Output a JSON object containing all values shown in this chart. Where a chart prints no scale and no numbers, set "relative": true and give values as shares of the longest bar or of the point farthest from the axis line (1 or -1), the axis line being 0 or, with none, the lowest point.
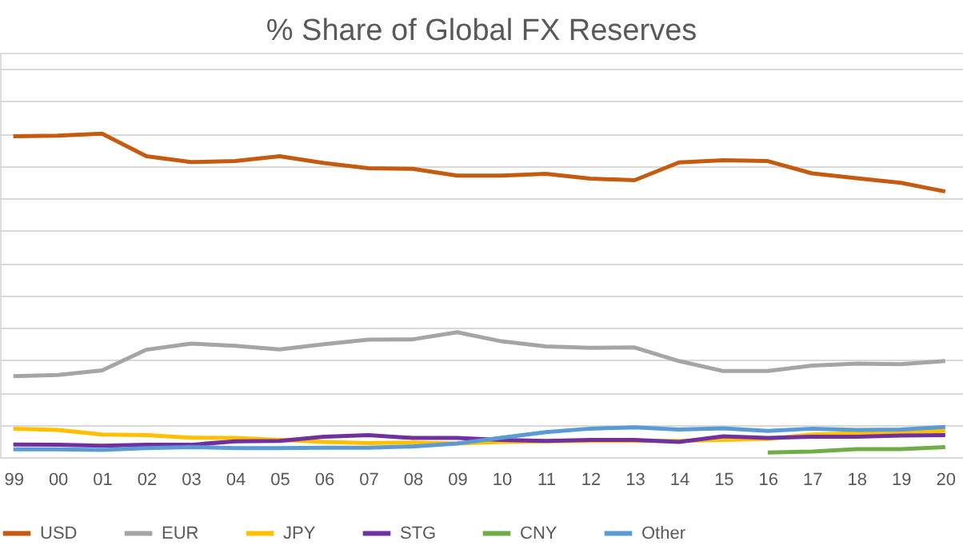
{
  "chart_data": {
    "type": "line",
    "title": "% Share of Global FX Reserves",
    "relative": true,
    "grid": "y",
    "legend": "bottom",
    "line_style": "solid",
    "marker": "none",
    "categories": [
      "99",
      "00",
      "01",
      "02",
      "03",
      "04",
      "05",
      "06",
      "07",
      "08",
      "09",
      "10",
      "11",
      "12",
      "13",
      "14",
      "15",
      "16",
      "17",
      "18",
      "19",
      "20"
    ],
    "series": [
      {
        "name": "USD",
        "color": "#c55a11",
        "values": [
          0.992,
          0.994,
          1,
          0.93,
          0.912,
          0.915,
          0.93,
          0.909,
          0.893,
          0.891,
          0.87,
          0.87,
          0.876,
          0.861,
          0.856,
          0.911,
          0.918,
          0.915,
          0.877,
          0.862,
          0.848,
          0.821
        ]
      },
      {
        "name": "EUR",
        "color": "#a5a5a5",
        "values": [
          0.25,
          0.254,
          0.268,
          0.332,
          0.351,
          0.344,
          0.333,
          0.349,
          0.363,
          0.364,
          0.386,
          0.358,
          0.342,
          0.338,
          0.339,
          0.297,
          0.266,
          0.266,
          0.283,
          0.289,
          0.287,
          0.297
        ]
      },
      {
        "name": "JPY",
        "color": "#ffc000",
        "values": [
          0.088,
          0.084,
          0.07,
          0.068,
          0.06,
          0.059,
          0.053,
          0.047,
          0.043,
          0.045,
          0.042,
          0.047,
          0.049,
          0.05,
          0.05,
          0.05,
          0.053,
          0.056,
          0.07,
          0.074,
          0.078,
          0.081
        ]
      },
      {
        "name": "STG",
        "color": "#7030a0",
        "values": [
          0.039,
          0.038,
          0.035,
          0.038,
          0.038,
          0.049,
          0.05,
          0.063,
          0.068,
          0.059,
          0.059,
          0.053,
          0.05,
          0.053,
          0.053,
          0.047,
          0.064,
          0.059,
          0.063,
          0.063,
          0.067,
          0.068
        ]
      },
      {
        "name": "CNY",
        "color": "#70ad47",
        "values": [
          null,
          null,
          null,
          null,
          null,
          null,
          null,
          null,
          null,
          null,
          null,
          null,
          null,
          null,
          null,
          null,
          null,
          0.014,
          0.017,
          0.025,
          0.025,
          0.031
        ]
      },
      {
        "name": "Other",
        "color": "#5b9bd5",
        "values": [
          0.024,
          0.024,
          0.022,
          0.028,
          0.031,
          0.028,
          0.028,
          0.029,
          0.029,
          0.033,
          0.042,
          0.06,
          0.077,
          0.088,
          0.092,
          0.085,
          0.089,
          0.081,
          0.088,
          0.084,
          0.085,
          0.093
        ]
      }
    ]
  }
}
